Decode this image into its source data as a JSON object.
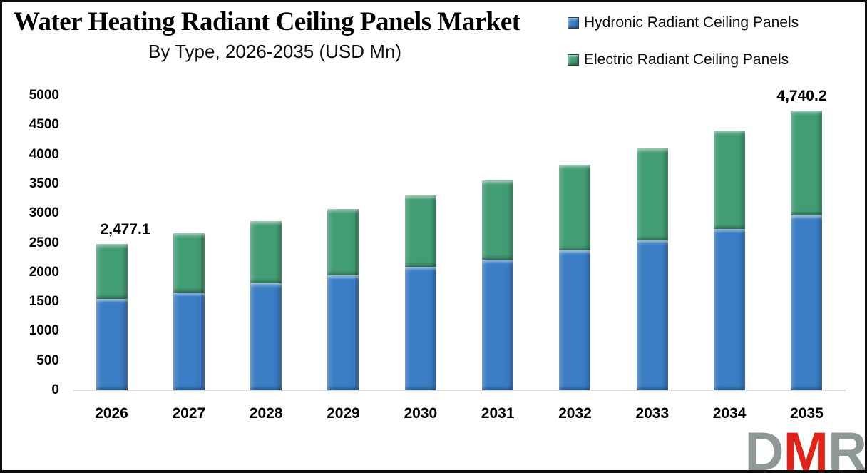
{
  "header": {
    "title": "Water Heating Radiant Ceiling Panels Market",
    "subtitle": "By Type, 2026-2035 (USD Mn)"
  },
  "logo": {
    "letters": [
      {
        "char": "D",
        "color": "#8E9897"
      },
      {
        "char": "M",
        "color": "#E2231A"
      },
      {
        "char": "R",
        "color": "#8E9897"
      }
    ]
  },
  "chart_data": {
    "type": "bar",
    "stacked": true,
    "title": "Water Heating Radiant Ceiling Panels Market",
    "subtitle": "By Type, 2026-2035 (USD Mn)",
    "categories": [
      "2026",
      "2027",
      "2028",
      "2029",
      "2030",
      "2031",
      "2032",
      "2033",
      "2034",
      "2035"
    ],
    "series": [
      {
        "name": "Hydronic Radiant Ceiling Panels",
        "color": "#3A7DC4",
        "values": [
          1545,
          1660,
          1820,
          1950,
          2100,
          2215,
          2370,
          2540,
          2735,
          2960
        ]
      },
      {
        "name": "Electric Radiant Ceiling Panels",
        "color": "#429D74",
        "values": [
          932.1,
          1000,
          1045,
          1125,
          1205,
          1340,
          1450,
          1565,
          1675,
          1780.2
        ]
      }
    ],
    "totals": [
      2477.1,
      2660,
      2865,
      3075,
      3305,
      3555,
      3820,
      4105,
      4410,
      4740.2
    ],
    "data_labels": [
      {
        "category": "2026",
        "text": "2,477.1"
      },
      {
        "category": "2035",
        "text": "4,740.2"
      }
    ],
    "xlabel": "",
    "ylabel": "",
    "ylim": [
      0,
      5000
    ],
    "ytick_step": 500,
    "ytick_labels": [
      "0",
      "500",
      "1000",
      "1500",
      "2000",
      "2500",
      "3000",
      "3500",
      "4000",
      "4500",
      "5000"
    ],
    "grid": false,
    "legend_position": "top-right",
    "axis_line_color": "#d9d9d9"
  }
}
